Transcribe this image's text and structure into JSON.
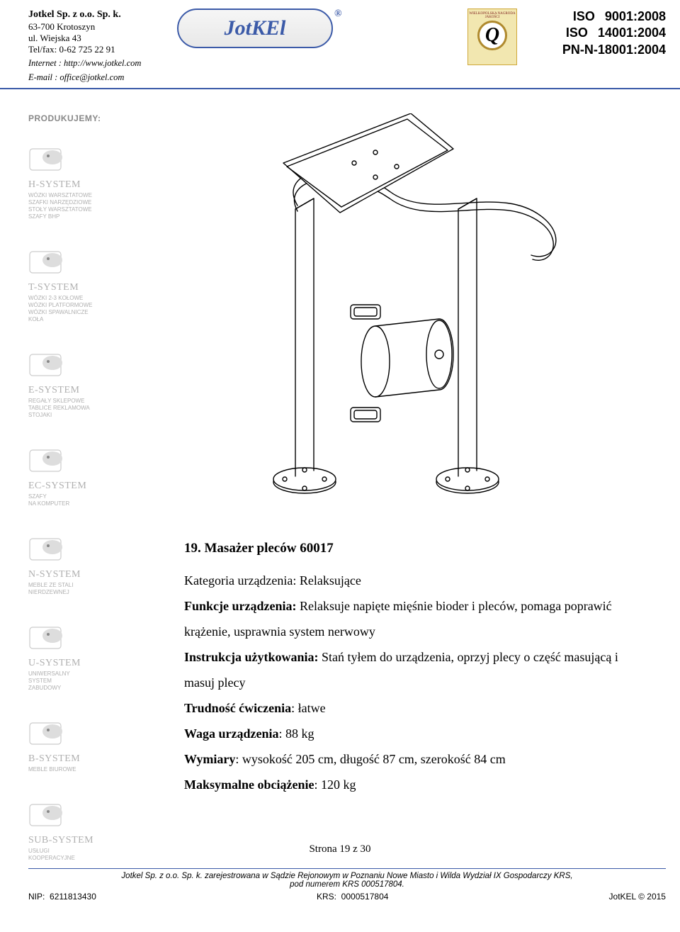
{
  "header": {
    "company_name": "Jotkel Sp. z o.o. Sp. k.",
    "addr1": "63-700 Krotoszyn",
    "addr2": "ul. Wiejska 43",
    "tel": "Tel/fax: 0-62 725 22 91",
    "internet": "Internet : http://www.jotkel.com",
    "email": "E-mail : office@jotkel.com",
    "logo_text": "JotKEl",
    "seal_top": "WIELKOPOLSKA NAGRODA JAKOŚCI",
    "seal_q": "Q",
    "iso1_l": "ISO",
    "iso1_r": "9001:2008",
    "iso2_l": "ISO",
    "iso2_r": "14001:2004",
    "iso3": "PN-N-18001:2004"
  },
  "sidebar": {
    "label": "PRODUKUJEMY:",
    "groups": [
      {
        "title": "H-SYSTEM",
        "lines": [
          "WÓZKI WARSZTATOWE",
          "SZAFKI NARZĘDZIOWE",
          "STOŁY WARSZTATOWE",
          "SZAFY BHP"
        ]
      },
      {
        "title": "T-SYSTEM",
        "lines": [
          "WÓZKI 2-3 KOŁOWE",
          "WÓZKI PLATFORMOWE",
          "WÓZKI SPAWALNICZE",
          "KOŁA"
        ]
      },
      {
        "title": "E-SYSTEM",
        "lines": [
          "REGAŁY SKLEPOWE",
          "TABLICE REKLAMOWA",
          "STOJAKI"
        ]
      },
      {
        "title": "EC-SYSTEM",
        "lines": [
          "SZAFY",
          "NA KOMPUTER"
        ]
      },
      {
        "title": "N-SYSTEM",
        "lines": [
          "MEBLE ZE STALI",
          "NIERDZEWNEJ"
        ]
      },
      {
        "title": "U-SYSTEM",
        "lines": [
          "UNIWERSALNY",
          "SYSTEM",
          "ZABUDOWY"
        ]
      },
      {
        "title": "B-SYSTEM",
        "lines": [
          "MEBLE BIUROWE"
        ]
      },
      {
        "title": "SUB-SYSTEM",
        "lines": [
          "USŁUGI",
          "KOOPERACYJNE"
        ]
      }
    ]
  },
  "content": {
    "title": "19. Masażer pleców 60017",
    "cat_label": "Kategoria urządzenia: ",
    "cat_val": "Relaksujące",
    "func_label": "Funkcje urządzenia: ",
    "func_val": "Relaksuje napięte mięśnie bioder i pleców, pomaga poprawić krążenie, usprawnia system nerwowy",
    "instr_label": "Instrukcja użytkowania: ",
    "instr_val": "Stań tyłem do urządzenia, oprzyj plecy o część masującą i masuj plecy",
    "diff_label": "Trudność ćwiczenia",
    "diff_val": ": łatwe",
    "weight_label": "Waga urządzenia",
    "weight_val": ": 88 kg",
    "dim_label": "Wymiary",
    "dim_val": ": wysokość 205 cm, długość 87 cm, szerokość 84 cm",
    "load_label": "Maksymalne obciążenie",
    "load_val": ": 120 kg"
  },
  "page": "Strona 19 z 30",
  "footer": {
    "line1": "Jotkel Sp. z o.o. Sp. k. zarejestrowana w Sądzie Rejonowym w Poznaniu Nowe Miasto i Wilda Wydział IX Gospodarczy KRS,",
    "line2": "pod numerem KRS 000517804.",
    "nip_l": "NIP:",
    "nip_v": "6211813430",
    "krs_l": "KRS:",
    "krs_v": "0000517804",
    "cpr": "JotKEL © 2015"
  },
  "colors": {
    "rule": "#3b5aa8",
    "grey": "#b0b0b0"
  }
}
